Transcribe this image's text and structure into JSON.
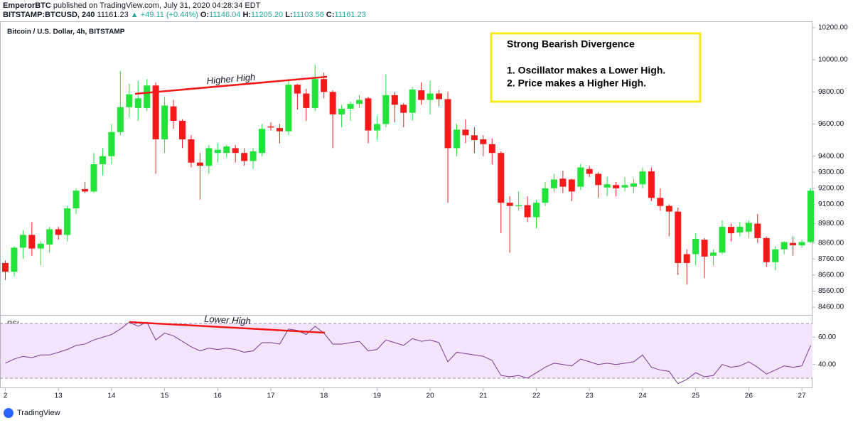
{
  "header": {
    "publisher": "EmperorBTC",
    "published": "published on TradingView.com, July 31, 2020 04:28:34 EDT",
    "symbol": "BITSTAMP:BTCUSD, 240",
    "last": "11161.23",
    "change": "▲ +49.11 (+0.44%)",
    "ohlc": [
      {
        "key": "O:",
        "value": "11146.04"
      },
      {
        "key": "H:",
        "value": "11205.20"
      },
      {
        "key": "L:",
        "value": "11103.56"
      },
      {
        "key": "C:",
        "value": "11161.23"
      }
    ]
  },
  "footer": {
    "brand": "TradingView"
  },
  "textbox": {
    "title": "Strong Bearish Divergence",
    "lines": [
      "1. Oscillator makes a Lower High.",
      "2. Price makes a Higher High."
    ]
  },
  "chart_data": [
    {
      "type": "candlestick",
      "title": "Bitcoin / U.S. Dollar, 4h, BITSTAMP",
      "annotation": "Higher High",
      "up_color": "#22e33a",
      "down_color": "#f41a1a",
      "open": [
        8735,
        8680,
        8830,
        8910,
        8825,
        8850,
        8945,
        8910,
        9075,
        9195,
        9180,
        9350,
        9400,
        9550,
        9705,
        9700,
        9700,
        9840,
        9505,
        9710,
        9620,
        9505,
        9360,
        9340,
        9420,
        9420,
        9450,
        9420,
        9370,
        9420,
        9585,
        9575,
        9555,
        9845,
        9790,
        9700,
        9880,
        9800,
        9660,
        9695,
        9725,
        9760,
        9560,
        9600,
        9780,
        9720,
        9670,
        9810,
        9750,
        9790,
        9755,
        9450,
        9565,
        9530,
        9505,
        9475,
        9420,
        9110,
        9090,
        9095,
        9020,
        9110,
        9200,
        9260,
        9255,
        9210,
        9320,
        9290,
        9205,
        9220,
        9205,
        9210,
        9225,
        9305,
        9140,
        9090,
        9055,
        8790,
        8790,
        8880,
        8780,
        8800,
        8960,
        8925,
        8930,
        8980,
        8890,
        8740,
        8820,
        8860,
        8845,
        8865
      ],
      "high": [
        8750,
        8840,
        8940,
        8990,
        8870,
        8960,
        8960,
        9090,
        9200,
        9240,
        9420,
        9450,
        9600,
        9930,
        9850,
        9870,
        9880,
        9860,
        9770,
        9750,
        9630,
        9530,
        9420,
        9470,
        9480,
        9470,
        9470,
        9450,
        9450,
        9600,
        9610,
        9600,
        9870,
        9850,
        9820,
        9970,
        9920,
        9810,
        9720,
        9740,
        9780,
        9770,
        9650,
        9910,
        9800,
        9730,
        9830,
        9860,
        9870,
        9810,
        9800,
        9600,
        9630,
        9580,
        9530,
        9510,
        9430,
        9150,
        9180,
        9150,
        9130,
        9240,
        9290,
        9310,
        9260,
        9350,
        9340,
        9300,
        9270,
        9240,
        9270,
        9260,
        9330,
        9330,
        9200,
        9100,
        9080,
        8820,
        8920,
        8890,
        8820,
        9000,
        8980,
        8990,
        9000,
        9040,
        8900,
        8840,
        8870,
        8900,
        8880,
        9200
      ],
      "low": [
        8630,
        8650,
        8760,
        8780,
        8720,
        8800,
        8880,
        8870,
        9040,
        9170,
        9170,
        9280,
        9350,
        9530,
        9640,
        9620,
        9680,
        9290,
        9420,
        9570,
        9450,
        9330,
        9130,
        9290,
        9360,
        9390,
        9360,
        9340,
        9320,
        9400,
        9560,
        9480,
        9530,
        9690,
        9620,
        9680,
        9760,
        9450,
        9580,
        9620,
        9700,
        9480,
        9500,
        9580,
        9610,
        9580,
        9620,
        9720,
        9660,
        9710,
        9110,
        9400,
        9480,
        9420,
        9400,
        9350,
        8920,
        8800,
        9060,
        8990,
        8950,
        9090,
        9180,
        9170,
        9120,
        9190,
        9270,
        9140,
        9150,
        9150,
        9180,
        9170,
        9200,
        9120,
        9060,
        8900,
        8660,
        8600,
        8720,
        8640,
        8720,
        8790,
        8870,
        8900,
        8890,
        8860,
        8710,
        8690,
        8790,
        8780,
        8830,
        8860
      ],
      "close": [
        8680,
        8830,
        8910,
        8825,
        8855,
        8945,
        8910,
        9075,
        9185,
        9180,
        9350,
        9400,
        9550,
        9705,
        9785,
        9760,
        9840,
        9505,
        9715,
        9620,
        9505,
        9360,
        9340,
        9450,
        9440,
        9460,
        9420,
        9370,
        9430,
        9570,
        9580,
        9555,
        9845,
        9790,
        9700,
        9880,
        9800,
        9660,
        9695,
        9725,
        9750,
        9560,
        9600,
        9780,
        9720,
        9670,
        9815,
        9750,
        9790,
        9755,
        9450,
        9565,
        9530,
        9500,
        9475,
        9420,
        9110,
        9090,
        9095,
        9020,
        9110,
        9200,
        9255,
        9210,
        9180,
        9330,
        9290,
        9220,
        9225,
        9200,
        9220,
        9230,
        9305,
        9140,
        9090,
        9055,
        8735,
        8735,
        8885,
        8775,
        8800,
        8960,
        8920,
        8960,
        8985,
        8890,
        8740,
        8820,
        8865,
        8845,
        8865,
        9185
      ],
      "xlim": [
        -0.6,
        91.2
      ],
      "ylim": [
        8416,
        10235
      ],
      "yticks": [
        {
          "value": 10200,
          "label": "10200.00"
        },
        {
          "value": 10000,
          "label": "10000.00"
        },
        {
          "value": 9800,
          "label": "9800.00"
        },
        {
          "value": 9600,
          "label": "9600.00"
        },
        {
          "value": 9400,
          "label": "9400.00"
        },
        {
          "value": 9300,
          "label": "9300.00"
        },
        {
          "value": 9200,
          "label": "9200.00"
        },
        {
          "value": 9100,
          "label": "9100.00"
        },
        {
          "value": 8980,
          "label": "8980.00"
        },
        {
          "value": 8860,
          "label": "8860.00"
        },
        {
          "value": 8760,
          "label": "8760.00"
        },
        {
          "value": 8660,
          "label": "8660.00"
        },
        {
          "value": 8560,
          "label": "8560.00"
        },
        {
          "value": 8460,
          "label": "8460.00"
        }
      ],
      "xticks": [
        {
          "value": 0,
          "label": "2"
        },
        {
          "value": 6,
          "label": "13"
        },
        {
          "value": 12,
          "label": "14"
        },
        {
          "value": 18,
          "label": "15"
        },
        {
          "value": 24,
          "label": "16"
        },
        {
          "value": 30,
          "label": "17"
        },
        {
          "value": 36,
          "label": "18"
        },
        {
          "value": 42,
          "label": "19"
        },
        {
          "value": 48,
          "label": "20"
        },
        {
          "value": 54,
          "label": "21"
        },
        {
          "value": 60,
          "label": "22"
        },
        {
          "value": 66,
          "label": "23"
        },
        {
          "value": 72,
          "label": "24"
        },
        {
          "value": 78,
          "label": "25"
        },
        {
          "value": 84,
          "label": "26"
        },
        {
          "value": 90,
          "label": "27"
        }
      ]
    },
    {
      "type": "line",
      "title": "RSI",
      "annotation": "Lower High",
      "color": "#7b3a8f",
      "band_color": "#f3e3fb",
      "bands": [
        30,
        70
      ],
      "values": [
        41,
        44,
        46,
        45,
        47,
        47,
        49,
        51,
        54,
        55,
        58,
        60,
        62,
        66,
        71,
        68,
        71,
        58,
        63,
        61,
        57,
        53,
        50,
        52,
        51,
        52,
        51,
        49,
        50,
        56,
        56,
        55,
        66,
        65,
        62,
        68,
        63,
        55,
        55,
        56,
        57,
        50,
        51,
        58,
        56,
        54,
        59,
        57,
        58,
        56,
        42,
        49,
        48,
        47,
        46,
        43,
        32,
        31,
        32,
        30,
        34,
        38,
        41,
        40,
        39,
        44,
        42,
        40,
        41,
        40,
        41,
        42,
        47,
        38,
        36,
        35,
        26,
        29,
        34,
        31,
        32,
        40,
        38,
        39,
        42,
        38,
        33,
        36,
        39,
        38,
        39,
        54
      ],
      "ylim": [
        23.2,
        75.8
      ],
      "yticks": [
        {
          "value": 60,
          "label": "60.00"
        },
        {
          "value": 40,
          "label": "40.00"
        }
      ]
    }
  ]
}
